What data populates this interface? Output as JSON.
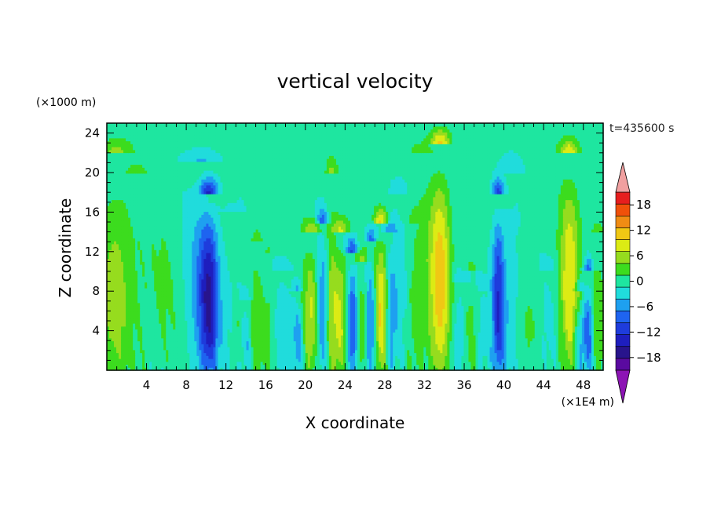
{
  "chart_data": {
    "type": "heatmap",
    "title": "vertical velocity",
    "xlabel": "X coordinate",
    "ylabel": "Z coordinate",
    "x_unit": "(×1E4 m)",
    "y_unit": "(×1000 m)",
    "time_label": "t=435600 s",
    "xlim": [
      0,
      50
    ],
    "ylim": [
      0,
      25
    ],
    "x_ticks": [
      4,
      8,
      12,
      16,
      20,
      24,
      28,
      32,
      36,
      40,
      44,
      48
    ],
    "y_ticks": [
      4,
      8,
      12,
      16,
      20,
      24
    ],
    "colorbar": {
      "ticks": [
        18,
        12,
        6,
        0,
        -6,
        -12,
        -18
      ],
      "levels": [
        -21,
        -18,
        -15,
        -12,
        -9,
        -6,
        -3,
        0,
        3,
        6,
        9,
        12,
        15,
        18,
        21
      ],
      "colors": [
        "#5a0aa0",
        "#28148c",
        "#1e1ebe",
        "#1e3cdc",
        "#1e64f0",
        "#1ea0f0",
        "#20dcdc",
        "#1ee6a0",
        "#3cdc1e",
        "#96dc1e",
        "#dceb14",
        "#f0c814",
        "#f08c14",
        "#f0500a",
        "#e61e1e"
      ],
      "low_color": "#8c14b4",
      "high_color": "#f0a0a0"
    },
    "features": [
      {
        "x": 0.8,
        "amp": 6,
        "width": 1.6,
        "top": 22
      },
      {
        "x": 3.0,
        "amp": 2,
        "width": 2.0,
        "top": 20
      },
      {
        "x": 6.0,
        "amp": 2,
        "width": 1.5,
        "top": 19
      },
      {
        "x": 9.5,
        "amp": -5,
        "width": 1.6,
        "top": 21
      },
      {
        "x": 10.3,
        "amp": -13,
        "width": 0.9,
        "top": 18
      },
      {
        "x": 12.5,
        "amp": -1.5,
        "width": 1.5,
        "top": 16
      },
      {
        "x": 13.2,
        "amp": 3,
        "width": 0.6,
        "top": 9
      },
      {
        "x": 14.0,
        "amp": -4,
        "width": 0.6,
        "top": 7
      },
      {
        "x": 15.1,
        "amp": 5,
        "width": 0.6,
        "top": 13
      },
      {
        "x": 16.3,
        "amp": 3,
        "width": 0.7,
        "top": 12
      },
      {
        "x": 17.8,
        "amp": -3,
        "width": 1.0,
        "top": 10
      },
      {
        "x": 19.3,
        "amp": -6,
        "width": 0.5,
        "top": 8
      },
      {
        "x": 20.6,
        "amp": 8,
        "width": 0.9,
        "top": 14
      },
      {
        "x": 21.7,
        "amp": -9,
        "width": 0.6,
        "top": 15
      },
      {
        "x": 22.6,
        "amp": 6,
        "width": 0.6,
        "top": 20
      },
      {
        "x": 23.6,
        "amp": 9,
        "width": 0.8,
        "top": 14
      },
      {
        "x": 24.7,
        "amp": -11,
        "width": 0.6,
        "top": 12
      },
      {
        "x": 25.7,
        "amp": 6,
        "width": 0.6,
        "top": 11
      },
      {
        "x": 26.6,
        "amp": -9,
        "width": 0.6,
        "top": 13
      },
      {
        "x": 27.6,
        "amp": 12,
        "width": 0.7,
        "top": 15
      },
      {
        "x": 28.6,
        "amp": -6,
        "width": 0.6,
        "top": 14
      },
      {
        "x": 29.6,
        "amp": -3,
        "width": 0.8,
        "top": 18
      },
      {
        "x": 31.0,
        "amp": 2,
        "width": 1.0,
        "top": 15
      },
      {
        "x": 32.0,
        "amp": 3,
        "width": 1.6,
        "top": 22
      },
      {
        "x": 33.6,
        "amp": 12,
        "width": 1.0,
        "top": 23
      },
      {
        "x": 35.5,
        "amp": -4,
        "width": 0.8,
        "top": 9
      },
      {
        "x": 36.7,
        "amp": 4,
        "width": 0.7,
        "top": 10
      },
      {
        "x": 37.8,
        "amp": -3,
        "width": 0.6,
        "top": 8
      },
      {
        "x": 39.4,
        "amp": -12,
        "width": 0.6,
        "top": 18
      },
      {
        "x": 40.5,
        "amp": -3,
        "width": 1.2,
        "top": 20
      },
      {
        "x": 42.5,
        "amp": 2,
        "width": 1.2,
        "top": 12
      },
      {
        "x": 44.5,
        "amp": -2,
        "width": 1.0,
        "top": 10
      },
      {
        "x": 46.6,
        "amp": 11,
        "width": 1.0,
        "top": 22
      },
      {
        "x": 47.6,
        "amp": -6,
        "width": 0.5,
        "top": 8
      },
      {
        "x": 48.5,
        "amp": -10,
        "width": 0.5,
        "top": 10
      },
      {
        "x": 49.5,
        "amp": 4,
        "width": 0.8,
        "top": 14
      }
    ]
  }
}
